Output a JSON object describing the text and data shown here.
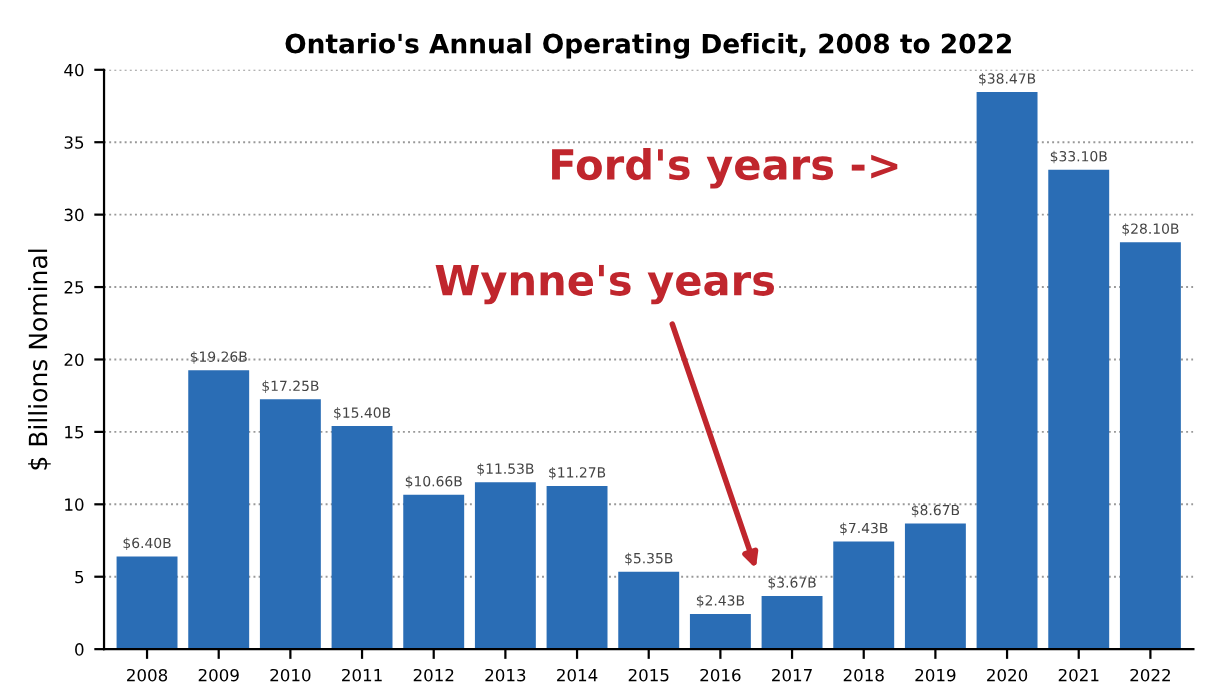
{
  "chart_data": {
    "type": "bar",
    "title": "Ontario's Annual Operating Deficit, 2008 to 2022",
    "ylabel": "$ Billions Nominal",
    "categories": [
      "2008",
      "2009",
      "2010",
      "2011",
      "2012",
      "2013",
      "2014",
      "2015",
      "2016",
      "2017",
      "2018",
      "2019",
      "2020",
      "2021",
      "2022"
    ],
    "values": [
      6.4,
      19.26,
      17.25,
      15.4,
      10.66,
      11.53,
      11.27,
      5.35,
      2.43,
      3.67,
      7.43,
      8.67,
      38.47,
      33.1,
      28.1
    ],
    "value_labels": [
      "$6.40B",
      "$19.26B",
      "$17.25B",
      "$15.40B",
      "$10.66B",
      "$11.53B",
      "$11.27B",
      "$5.35B",
      "$2.43B",
      "$3.67B",
      "$7.43B",
      "$8.67B",
      "$38.47B",
      "$33.10B",
      "$28.10B"
    ],
    "color": "#2a6db5",
    "ylim": [
      0,
      40
    ],
    "yticks": [
      0,
      5,
      10,
      15,
      20,
      25,
      30,
      35,
      40
    ],
    "grid": "y",
    "annotations": [
      "Ford's years ->",
      "Wynne's years"
    ]
  }
}
